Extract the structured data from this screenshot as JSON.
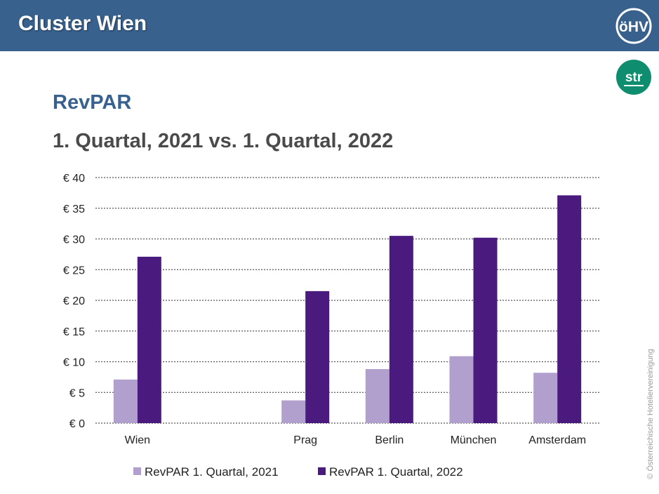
{
  "header": {
    "title": "Cluster Wien"
  },
  "logos": {
    "ohv_text": "öHV",
    "str_text": "str"
  },
  "main": {
    "heading": "RevPAR",
    "subheading": "1. Quartal, 2021 vs. 1. Quartal, 2022"
  },
  "colors": {
    "header_bg": "#38618e",
    "series_2021": "#b19fcd",
    "series_2022": "#4a1a7e",
    "str_logo": "#0e8e6e"
  },
  "chart_data": {
    "type": "bar",
    "categories": [
      "Wien",
      "",
      "Prag",
      "Berlin",
      "München",
      "Amsterdam"
    ],
    "series": [
      {
        "name": "RevPAR 1. Quartal, 2021",
        "values": [
          7.1,
          null,
          3.7,
          8.8,
          10.9,
          8.2
        ]
      },
      {
        "name": "RevPAR 1. Quartal, 2022",
        "values": [
          27.1,
          null,
          21.5,
          30.5,
          30.2,
          37.1
        ]
      }
    ],
    "ylim": [
      0,
      40
    ],
    "yticks": [
      "€ 0",
      "€ 5",
      "€ 10",
      "€ 15",
      "€ 20",
      "€ 25",
      "€ 30",
      "€ 35",
      "€ 40"
    ],
    "ytick_values": [
      0,
      5,
      10,
      15,
      20,
      25,
      30,
      35,
      40
    ],
    "grid": true,
    "legend_position": "bottom"
  },
  "footer": {
    "copyright": "© Österreichische Hoteliervereinigung"
  }
}
